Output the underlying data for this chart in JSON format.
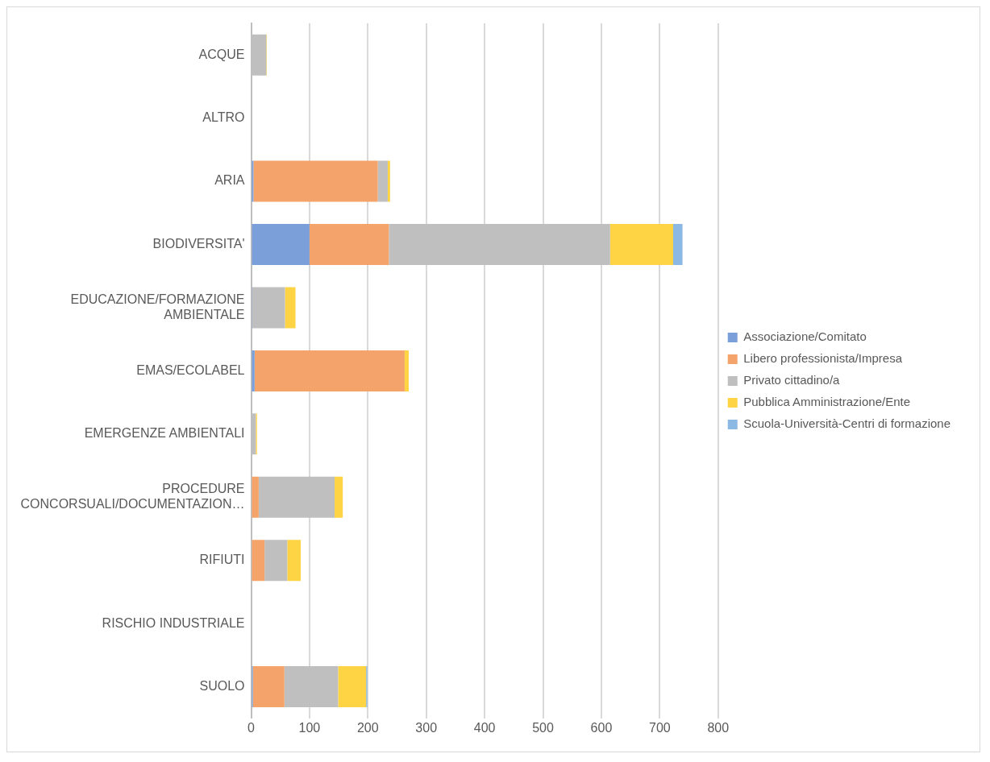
{
  "chart_data": {
    "type": "bar",
    "orientation": "horizontal",
    "stacked": true,
    "categories": [
      "ACQUE",
      "ALTRO",
      "ARIA",
      "BIODIVERSITA'",
      "EDUCAZIONE/FORMAZIONE AMBIENTALE",
      "EMAS/ECOLABEL",
      "EMERGENZE AMBIENTALI",
      "PROCEDURE CONCORSUALI/DOCUMENTAZION…",
      "RIFIUTI",
      "RISCHIO INDUSTRIALE",
      "SUOLO"
    ],
    "series": [
      {
        "name": "Associazione/Comitato",
        "color": "#7b9fd8",
        "values": [
          0,
          0,
          4,
          100,
          1,
          6,
          0,
          0,
          0,
          0,
          3
        ]
      },
      {
        "name": "Libero professionista/Impresa",
        "color": "#f4a46a",
        "values": [
          0,
          0,
          213,
          136,
          0,
          257,
          0,
          13,
          23,
          0,
          54
        ]
      },
      {
        "name": "Privato cittadino/a",
        "color": "#bfbfbf",
        "values": [
          26,
          2,
          17,
          379,
          57,
          0,
          8,
          130,
          39,
          0,
          92
        ]
      },
      {
        "name": "Pubblica Amministrazione/Ente",
        "color": "#ffd444",
        "values": [
          1,
          0,
          4,
          108,
          18,
          7,
          2,
          14,
          23,
          0,
          48
        ]
      },
      {
        "name": "Scuola-Università-Centri di formazione",
        "color": "#8cb9e3",
        "values": [
          0,
          0,
          0,
          16,
          0,
          0,
          0,
          0,
          0,
          0,
          2
        ]
      }
    ],
    "xlim": [
      0,
      800
    ],
    "xticks": [
      0,
      100,
      200,
      300,
      400,
      500,
      600,
      700,
      800
    ],
    "grid": "x",
    "legend": "right"
  }
}
